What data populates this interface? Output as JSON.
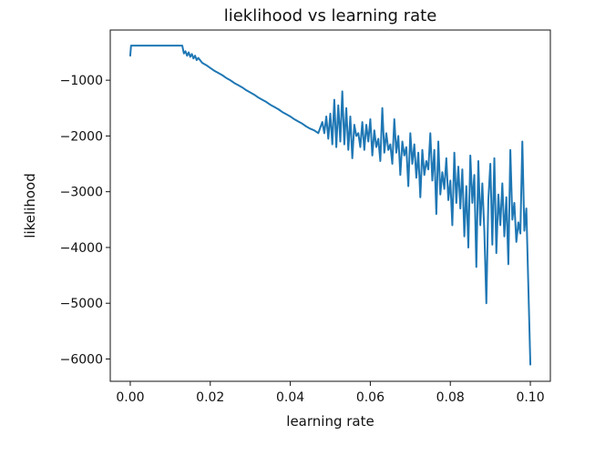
{
  "chart_data": {
    "type": "line",
    "title": "lieklihood vs learning rate",
    "xlabel": "learning rate",
    "ylabel": "likelihood",
    "xlim": [
      -0.005,
      0.105
    ],
    "ylim": [
      -6400,
      -100
    ],
    "xticks": [
      0.0,
      0.02,
      0.04,
      0.06,
      0.08,
      0.1
    ],
    "xtick_labels": [
      "0.00",
      "0.02",
      "0.04",
      "0.06",
      "0.08",
      "0.10"
    ],
    "yticks": [
      -1000,
      -2000,
      -3000,
      -4000,
      -5000,
      -6000
    ],
    "ytick_labels": [
      "−1000",
      "−2000",
      "−3000",
      "−4000",
      "−5000",
      "−6000"
    ],
    "grid": false,
    "series": [
      {
        "name": "",
        "color": "#1f77b4",
        "x": [
          0.0,
          0.0002,
          0.0004,
          0.001,
          0.003,
          0.006,
          0.009,
          0.012,
          0.0128,
          0.013,
          0.0134,
          0.0138,
          0.0142,
          0.0146,
          0.015,
          0.0154,
          0.0158,
          0.0162,
          0.0166,
          0.017,
          0.018,
          0.019,
          0.02,
          0.021,
          0.022,
          0.023,
          0.024,
          0.025,
          0.026,
          0.027,
          0.028,
          0.029,
          0.03,
          0.031,
          0.032,
          0.033,
          0.034,
          0.035,
          0.036,
          0.037,
          0.038,
          0.039,
          0.04,
          0.041,
          0.042,
          0.043,
          0.044,
          0.045,
          0.046,
          0.047,
          0.048,
          0.0485,
          0.049,
          0.0495,
          0.05,
          0.0505,
          0.051,
          0.0515,
          0.052,
          0.0525,
          0.053,
          0.0535,
          0.054,
          0.0545,
          0.055,
          0.0555,
          0.056,
          0.0565,
          0.057,
          0.0575,
          0.058,
          0.0585,
          0.059,
          0.0595,
          0.06,
          0.0605,
          0.061,
          0.0615,
          0.062,
          0.0625,
          0.063,
          0.0635,
          0.064,
          0.0645,
          0.065,
          0.0655,
          0.066,
          0.0665,
          0.067,
          0.0675,
          0.068,
          0.0685,
          0.069,
          0.0695,
          0.07,
          0.0705,
          0.071,
          0.0715,
          0.072,
          0.0725,
          0.073,
          0.0735,
          0.074,
          0.0745,
          0.075,
          0.0755,
          0.076,
          0.0765,
          0.077,
          0.0775,
          0.078,
          0.0785,
          0.079,
          0.0795,
          0.08,
          0.0805,
          0.081,
          0.0815,
          0.082,
          0.0825,
          0.083,
          0.0835,
          0.084,
          0.0845,
          0.085,
          0.0855,
          0.086,
          0.0865,
          0.087,
          0.0875,
          0.088,
          0.0885,
          0.089,
          0.0895,
          0.09,
          0.0905,
          0.091,
          0.0915,
          0.092,
          0.0925,
          0.093,
          0.0935,
          0.094,
          0.0945,
          0.095,
          0.0955,
          0.096,
          0.0965,
          0.097,
          0.0975,
          0.098,
          0.0985,
          0.099,
          0.0995,
          0.1
        ],
        "y": [
          -560,
          -380,
          -380,
          -380,
          -380,
          -380,
          -380,
          -380,
          -380,
          -380,
          -520,
          -480,
          -560,
          -500,
          -580,
          -530,
          -610,
          -560,
          -640,
          -600,
          -690,
          -730,
          -780,
          -830,
          -870,
          -910,
          -960,
          -1000,
          -1050,
          -1090,
          -1130,
          -1180,
          -1220,
          -1260,
          -1310,
          -1350,
          -1390,
          -1440,
          -1480,
          -1520,
          -1570,
          -1610,
          -1650,
          -1700,
          -1740,
          -1780,
          -1830,
          -1870,
          -1900,
          -1950,
          -1750,
          -1950,
          -1650,
          -2050,
          -1600,
          -2150,
          -1350,
          -2200,
          -1450,
          -2100,
          -1200,
          -2150,
          -1500,
          -2250,
          -1650,
          -2400,
          -1800,
          -2000,
          -1950,
          -2200,
          -1750,
          -2250,
          -1800,
          -2100,
          -1700,
          -2350,
          -1900,
          -2200,
          -2050,
          -2450,
          -1500,
          -2300,
          -1950,
          -2250,
          -2150,
          -2500,
          -1700,
          -2300,
          -2000,
          -2700,
          -2100,
          -2350,
          -2200,
          -2900,
          -1950,
          -2500,
          -2150,
          -2750,
          -2300,
          -3100,
          -2250,
          -2700,
          -2450,
          -2600,
          -1950,
          -2800,
          -2250,
          -3400,
          -2100,
          -3050,
          -2650,
          -2950,
          -2400,
          -3150,
          -2800,
          -3600,
          -2300,
          -3200,
          -2550,
          -3300,
          -2600,
          -3800,
          -2900,
          -4000,
          -2350,
          -3200,
          -2700,
          -4350,
          -2450,
          -3600,
          -2850,
          -3700,
          -5000,
          -3150,
          -2500,
          -3950,
          -2400,
          -4100,
          -3050,
          -3600,
          -2850,
          -3800,
          -3100,
          -4300,
          -2250,
          -3500,
          -3200,
          -3900,
          -3550,
          -3750,
          -2100,
          -3700,
          -3300,
          -4700,
          -6100
        ]
      }
    ]
  }
}
